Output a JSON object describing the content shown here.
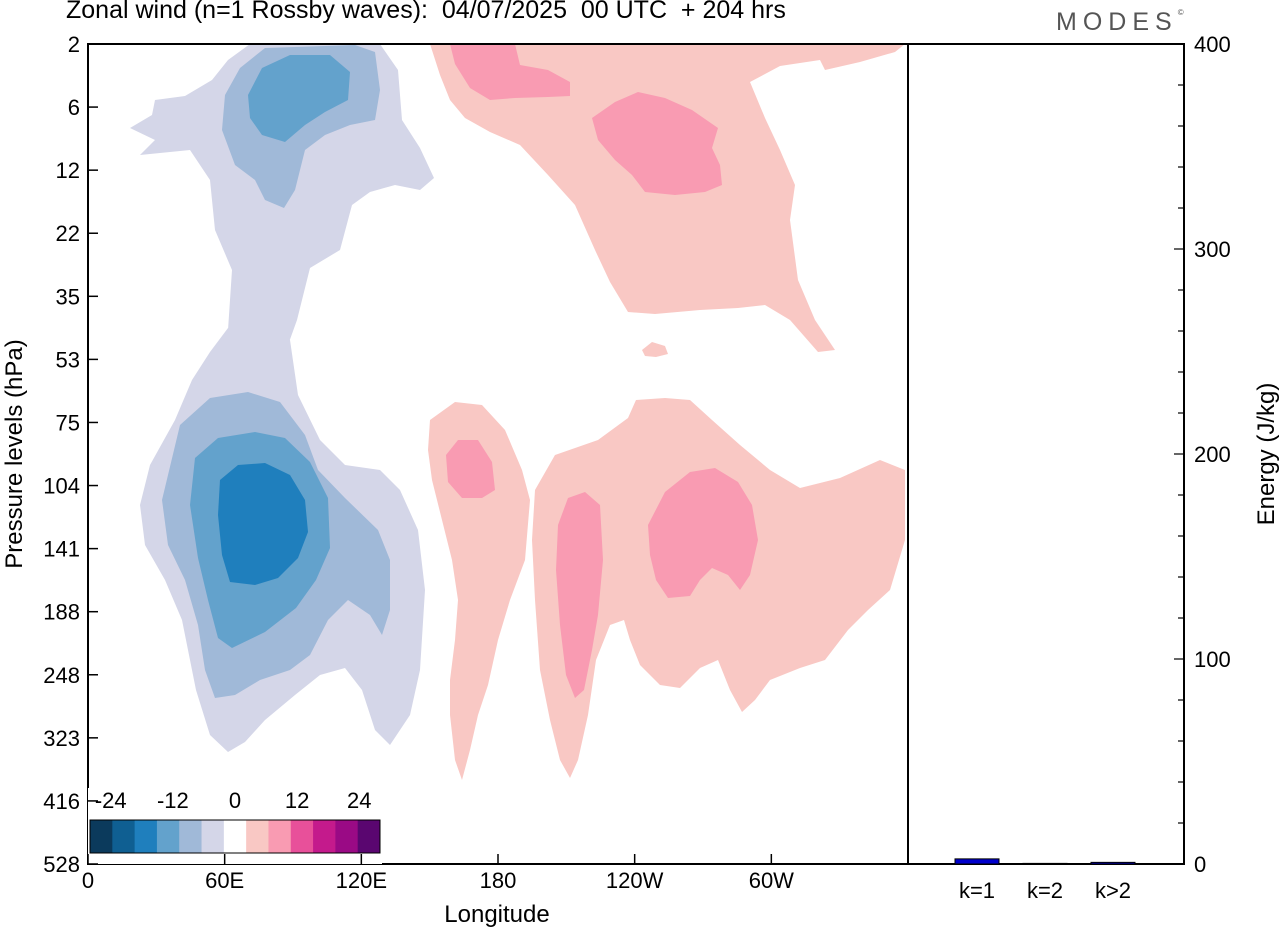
{
  "header": {
    "title": "Zonal wind (n=1 Rossby waves):  04/07/2025  00 UTC  + 204 hrs",
    "brand": "MODES",
    "brand_mark": "©"
  },
  "chart_data": [
    {
      "type": "heatmap",
      "description_kind": "contour",
      "xlabel": "Longitude",
      "ylabel": "Pressure levels (hPa)",
      "x_ticks": [
        "0",
        "60E",
        "120E",
        "180",
        "120W",
        "60W"
      ],
      "x_tick_values": [
        0,
        60,
        120,
        180,
        240,
        300
      ],
      "x_range": [
        0,
        360
      ],
      "y_ticks": [
        "2",
        "6",
        "12",
        "22",
        "35",
        "53",
        "75",
        "104",
        "141",
        "188",
        "248",
        "323",
        "416",
        "528"
      ],
      "y_scale": "pressure levels (equally spaced)",
      "colorbar": {
        "labels": [
          "-24",
          "-12",
          "0",
          "12",
          "24"
        ],
        "label_values": [
          -24,
          -12,
          0,
          12,
          24
        ],
        "colors": [
          "#0b3a5c",
          "#0f5f92",
          "#1f7fbd",
          "#63a2cc",
          "#a0b9d8",
          "#d4d6e8",
          "#ffffff",
          "#f9c8c4",
          "#f99bb2",
          "#e8509a",
          "#c41a8c",
          "#9a0a85",
          "#5a0670"
        ]
      },
      "colors": {
        "neg_light": "#d4d6e8",
        "neg_2": "#a0b9d8",
        "neg_3": "#63a2cc",
        "neg_4": "#1f7fbd",
        "pos_light": "#f9c8c4",
        "pos_2": "#f99bb2"
      }
    },
    {
      "type": "bar",
      "categories": [
        "k=1",
        "k=2",
        "k>2"
      ],
      "values": [
        2.5,
        0.3,
        0.8
      ],
      "ylabel": "Energy (J/kg)",
      "ylim": [
        0,
        400
      ],
      "y_ticks": [
        "0",
        "100",
        "200",
        "300",
        "400"
      ],
      "y_tick_values": [
        0,
        100,
        200,
        300,
        400
      ],
      "bar_color": "#0000cc"
    }
  ]
}
